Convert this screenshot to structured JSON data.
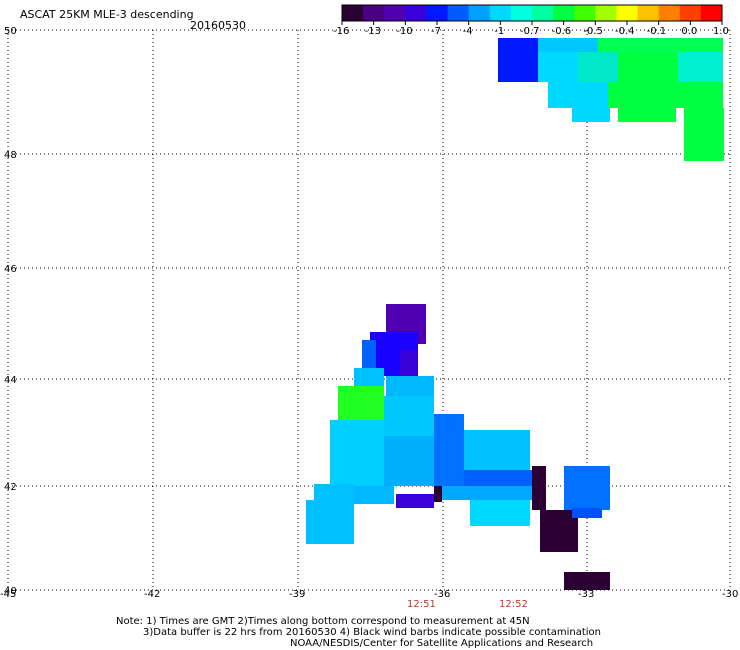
{
  "header": {
    "title": "ASCAT 25KM MLE-3 descending",
    "date": "20160530"
  },
  "colorbar": {
    "colors": [
      "#2b0033",
      "#4a0080",
      "#5000b0",
      "#3a00d8",
      "#0018ff",
      "#005cff",
      "#00a0ff",
      "#00d8ff",
      "#00ffe0",
      "#00ffa0",
      "#00ff40",
      "#40ff00",
      "#a0ff00",
      "#ffff00",
      "#ffc000",
      "#ff8000",
      "#ff4000",
      "#ff0000"
    ],
    "tick_labels": [
      "-16",
      "-13",
      "-10",
      "-7",
      "-4",
      "-1",
      "-0.7",
      "-0.6",
      "-0.5",
      "-0.4",
      "-0.1",
      "0.0",
      "1.0"
    ]
  },
  "axes": {
    "lon_labels": [
      "-45",
      "-42",
      "-39",
      "-36",
      "-33",
      "-30"
    ],
    "lat_labels": [
      "50",
      "48",
      "46",
      "44",
      "42",
      "40"
    ]
  },
  "times": {
    "t1": "12:51",
    "t2": "12:52"
  },
  "notes": {
    "line1": "Note: 1) Times are GMT 2)Times along bottom correspond to measurement at 45N",
    "line2": "3)Data buffer is 22 hrs from 20160530 4) Black wind barbs indicate possible contamination",
    "line3": "NOAA/NESDIS/Center for Satellite Applications and Research"
  },
  "colors": {
    "accent_time": "#c0392b"
  }
}
